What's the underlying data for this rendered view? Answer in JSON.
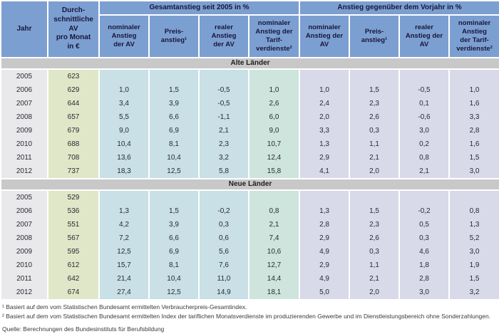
{
  "table": {
    "header": {
      "jahr": "Jahr",
      "av": "Durch-\nschnittliche\nAV\npro Monat\nin €",
      "group_total": "Gesamtanstieg seit 2005 in %",
      "group_yoy": "Anstieg gegenüber dem Vorjahr in %",
      "subcols_total": [
        "nominaler\nAnstieg\nder AV",
        "Preis-\nanstieg¹",
        "realer\nAnstieg\nder AV",
        "nominaler\nAnstieg der\nTarif-\nverdienste²"
      ],
      "subcols_yoy": [
        "nominaler\nAnstieg der\nAV",
        "Preis-\nanstieg¹",
        "realer\nAnstieg der\nAV",
        "nominaler\nAnstieg\nder Tarif-\nverdienste²"
      ]
    },
    "sections": [
      {
        "label": "Alte Länder",
        "rows": [
          {
            "year": "2005",
            "av": "623",
            "values": [
              "",
              "",
              "",
              "",
              "",
              "",
              "",
              ""
            ]
          },
          {
            "year": "2006",
            "av": "629",
            "values": [
              "1,0",
              "1,5",
              "-0,5",
              "1,0",
              "1,0",
              "1,5",
              "-0,5",
              "1,0"
            ]
          },
          {
            "year": "2007",
            "av": "644",
            "values": [
              "3,4",
              "3,9",
              "-0,5",
              "2,6",
              "2,4",
              "2,3",
              "0,1",
              "1,6"
            ]
          },
          {
            "year": "2008",
            "av": "657",
            "values": [
              "5,5",
              "6,6",
              "-1,1",
              "6,0",
              "2,0",
              "2,6",
              "-0,6",
              "3,3"
            ]
          },
          {
            "year": "2009",
            "av": "679",
            "values": [
              "9,0",
              "6,9",
              "2,1",
              "9,0",
              "3,3",
              "0,3",
              "3,0",
              "2,8"
            ]
          },
          {
            "year": "2010",
            "av": "688",
            "values": [
              "10,4",
              "8,1",
              "2,3",
              "10,7",
              "1,3",
              "1,1",
              "0,2",
              "1,6"
            ]
          },
          {
            "year": "2011",
            "av": "708",
            "values": [
              "13,6",
              "10,4",
              "3,2",
              "12,4",
              "2,9",
              "2,1",
              "0,8",
              "1,5"
            ]
          },
          {
            "year": "2012",
            "av": "737",
            "values": [
              "18,3",
              "12,5",
              "5,8",
              "15,8",
              "4,1",
              "2,0",
              "2,1",
              "3,0"
            ]
          }
        ]
      },
      {
        "label": "Neue Länder",
        "rows": [
          {
            "year": "2005",
            "av": "529",
            "values": [
              "",
              "",
              "",
              "",
              "",
              "",
              "",
              ""
            ]
          },
          {
            "year": "2006",
            "av": "536",
            "values": [
              "1,3",
              "1,5",
              "-0,2",
              "0,8",
              "1,3",
              "1,5",
              "-0,2",
              "0,8"
            ]
          },
          {
            "year": "2007",
            "av": "551",
            "values": [
              "4,2",
              "3,9",
              "0,3",
              "2,1",
              "2,8",
              "2,3",
              "0,5",
              "1,3"
            ]
          },
          {
            "year": "2008",
            "av": "567",
            "values": [
              "7,2",
              "6,6",
              "0,6",
              "7,4",
              "2,9",
              "2,6",
              "0,3",
              "5,2"
            ]
          },
          {
            "year": "2009",
            "av": "595",
            "values": [
              "12,5",
              "6,9",
              "5,6",
              "10,6",
              "4,9",
              "0,3",
              "4,6",
              "3,0"
            ]
          },
          {
            "year": "2010",
            "av": "612",
            "values": [
              "15,7",
              "8,1",
              "7,6",
              "12,7",
              "2,9",
              "1,1",
              "1,8",
              "1,9"
            ]
          },
          {
            "year": "2011",
            "av": "642",
            "values": [
              "21,4",
              "10,4",
              "11,0",
              "14,4",
              "4,9",
              "2,1",
              "2,8",
              "1,5"
            ]
          },
          {
            "year": "2012",
            "av": "674",
            "values": [
              "27,4",
              "12,5",
              "14,9",
              "18,1",
              "5,0",
              "2,0",
              "3,0",
              "3,2"
            ]
          }
        ]
      }
    ]
  },
  "footnotes": [
    "¹ Basiert auf dem vom Statistischen Bundesamt ermittelten Verbraucherpreis-Gesamtindex.",
    "² Basiert auf dem vom Statistischen Bundesamt ermittelten Index der tariflichen Monatsverdienste im produzierenden Gewerbe und im Dienstleistungsbereich ohne Sonderzahlungen."
  ],
  "source": "Quelle: Berechnungen des Bundesinstituts für Berufsbildung",
  "colors": {
    "header_bg": "#7c9fd1",
    "section_band_bg": "#c8c8c8",
    "year_col_bg": "#e9e9eb",
    "av_col_bg": "#dfe7c8",
    "total_cols_bg": "#c8e0e6",
    "tarif_total_col_bg": "#cde5dd",
    "yoy_cols_bg": "#d8daea"
  },
  "chart_data": {
    "type": "table",
    "columns": [
      "Jahr",
      "Durchschnittliche AV pro Monat in €",
      "Gesamtanstieg seit 2005 in %: nominaler Anstieg der AV",
      "Gesamtanstieg seit 2005 in %: Preisanstieg",
      "Gesamtanstieg seit 2005 in %: realer Anstieg der AV",
      "Gesamtanstieg seit 2005 in %: nominaler Anstieg der Tarifverdienste",
      "Anstieg gegenüber dem Vorjahr in %: nominaler Anstieg der AV",
      "Anstieg gegenüber dem Vorjahr in %: Preisanstieg",
      "Anstieg gegenüber dem Vorjahr in %: realer Anstieg der AV",
      "Anstieg gegenüber dem Vorjahr in %: nominaler Anstieg der Tarifverdienste"
    ],
    "rows_alte_laender": [
      [
        2005,
        623,
        null,
        null,
        null,
        null,
        null,
        null,
        null,
        null
      ],
      [
        2006,
        629,
        1.0,
        1.5,
        -0.5,
        1.0,
        1.0,
        1.5,
        -0.5,
        1.0
      ],
      [
        2007,
        644,
        3.4,
        3.9,
        -0.5,
        2.6,
        2.4,
        2.3,
        0.1,
        1.6
      ],
      [
        2008,
        657,
        5.5,
        6.6,
        -1.1,
        6.0,
        2.0,
        2.6,
        -0.6,
        3.3
      ],
      [
        2009,
        679,
        9.0,
        6.9,
        2.1,
        9.0,
        3.3,
        0.3,
        3.0,
        2.8
      ],
      [
        2010,
        688,
        10.4,
        8.1,
        2.3,
        10.7,
        1.3,
        1.1,
        0.2,
        1.6
      ],
      [
        2011,
        708,
        13.6,
        10.4,
        3.2,
        12.4,
        2.9,
        2.1,
        0.8,
        1.5
      ],
      [
        2012,
        737,
        18.3,
        12.5,
        5.8,
        15.8,
        4.1,
        2.0,
        2.1,
        3.0
      ]
    ],
    "rows_neue_laender": [
      [
        2005,
        529,
        null,
        null,
        null,
        null,
        null,
        null,
        null,
        null
      ],
      [
        2006,
        536,
        1.3,
        1.5,
        -0.2,
        0.8,
        1.3,
        1.5,
        -0.2,
        0.8
      ],
      [
        2007,
        551,
        4.2,
        3.9,
        0.3,
        2.1,
        2.8,
        2.3,
        0.5,
        1.3
      ],
      [
        2008,
        567,
        7.2,
        6.6,
        0.6,
        7.4,
        2.9,
        2.6,
        0.3,
        5.2
      ],
      [
        2009,
        595,
        12.5,
        6.9,
        5.6,
        10.6,
        4.9,
        0.3,
        4.6,
        3.0
      ],
      [
        2010,
        612,
        15.7,
        8.1,
        7.6,
        12.7,
        2.9,
        1.1,
        1.8,
        1.9
      ],
      [
        2011,
        642,
        21.4,
        10.4,
        11.0,
        14.4,
        4.9,
        2.1,
        2.8,
        1.5
      ],
      [
        2012,
        674,
        27.4,
        12.5,
        14.9,
        18.1,
        5.0,
        2.0,
        3.0,
        3.2
      ]
    ]
  }
}
